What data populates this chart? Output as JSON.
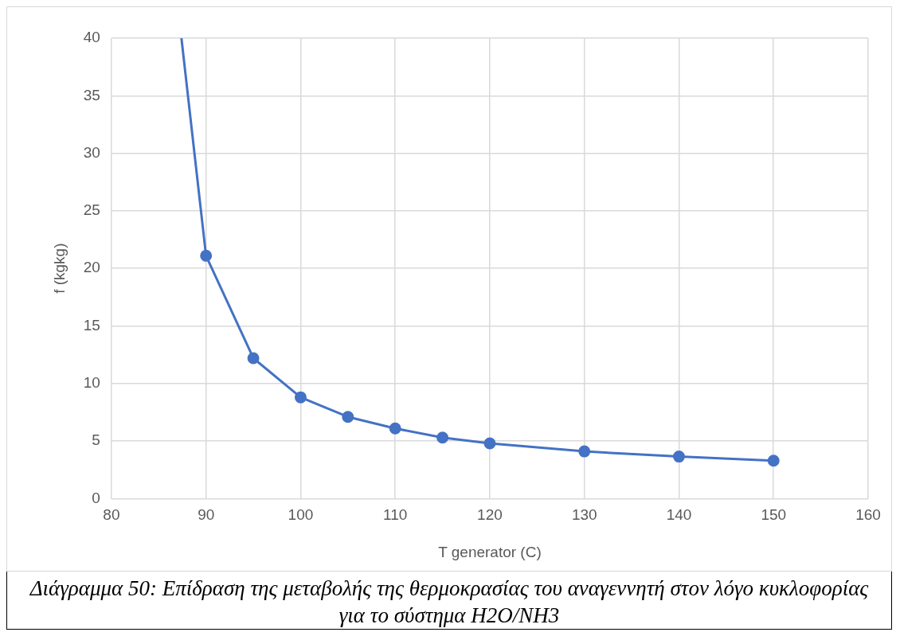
{
  "chart_data": {
    "type": "line",
    "xlabel": "T generator (C)",
    "ylabel": "f (kgkg)",
    "xlim": [
      80,
      160
    ],
    "xticks": [
      80,
      90,
      100,
      110,
      120,
      130,
      140,
      150,
      160
    ],
    "ylim": [
      0,
      40
    ],
    "yticks": [
      0,
      5,
      10,
      15,
      20,
      25,
      30,
      35,
      40
    ],
    "grid": true,
    "legend": false,
    "marker": "circle",
    "line_style": "solid",
    "series": [
      {
        "color": "#4472c4",
        "x": [
          90,
          95,
          100,
          105,
          110,
          115,
          120,
          130,
          140,
          150
        ],
        "values": [
          21.1,
          12.2,
          8.8,
          7.1,
          6.1,
          5.3,
          4.8,
          4.1,
          3.65,
          3.3
        ]
      },
      {
        "color": "#4472c4",
        "marker": "none",
        "x": [
          87.4,
          90
        ],
        "values": [
          40,
          21.1
        ]
      }
    ],
    "annotations": [
      "Διάγραμμα 50: Επίδραση της μεταβολής της θερμοκρασίας του αναγεννητή στον λόγο κυκλοφορίας για το σύστημα H2O/NH3"
    ]
  }
}
